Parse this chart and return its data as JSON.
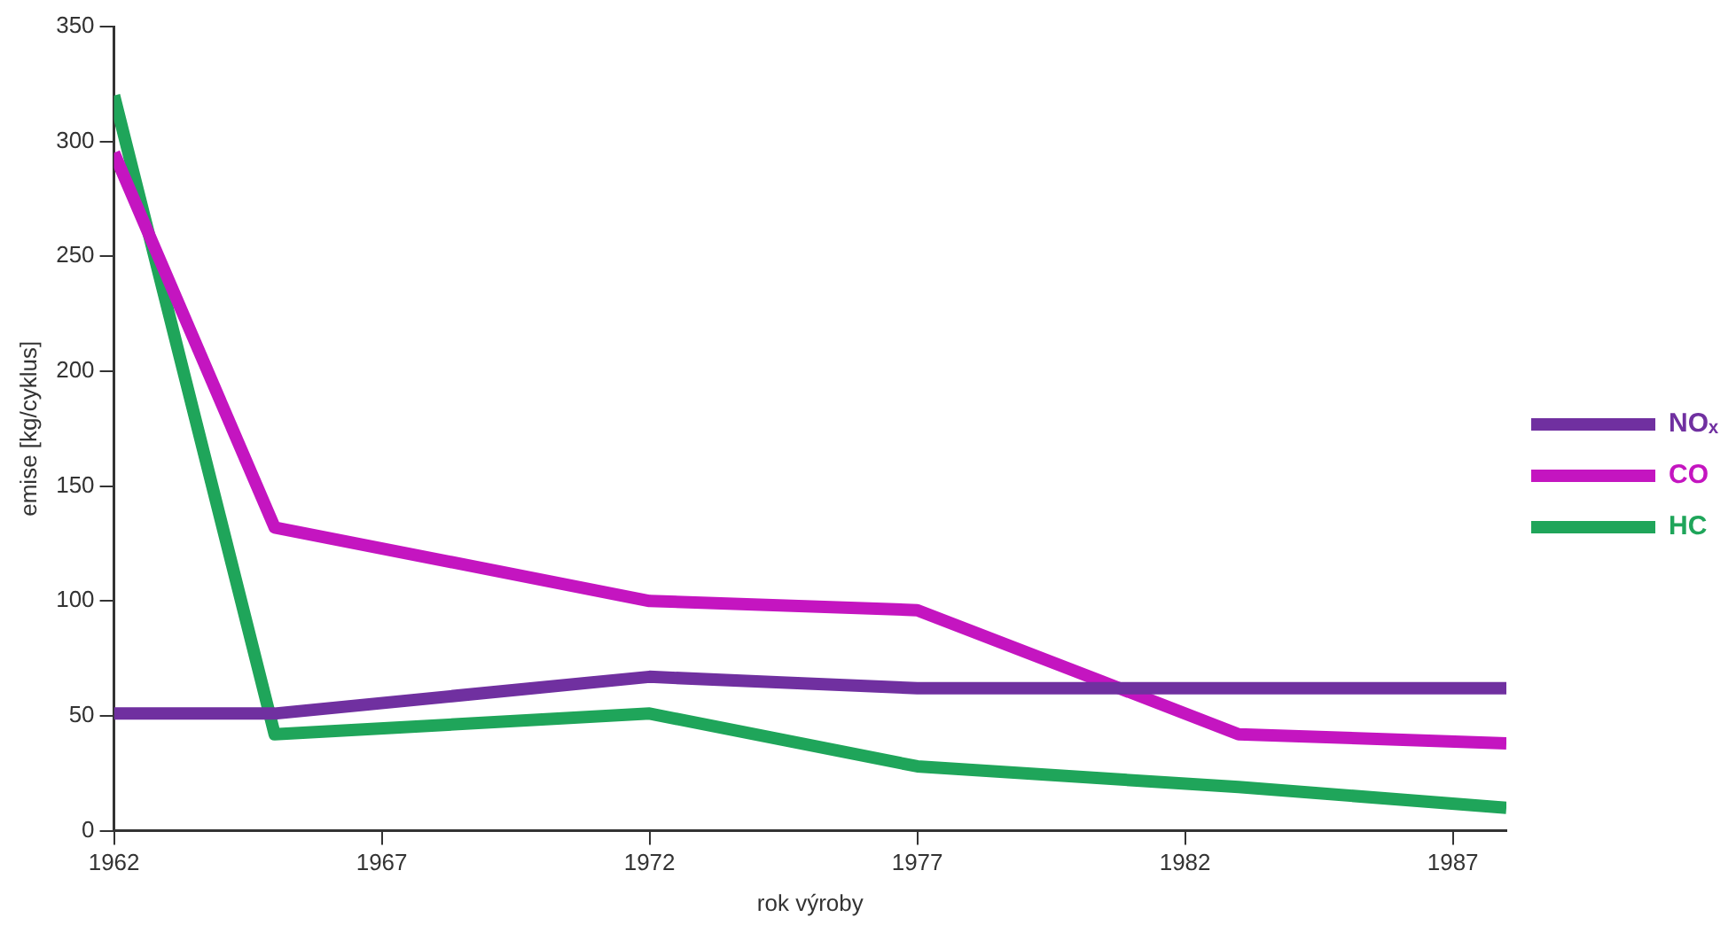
{
  "chart_data": {
    "type": "line",
    "xlabel": "rok výroby",
    "ylabel": "emise [kg/cyklus]",
    "xlim": [
      1962,
      1988
    ],
    "xticks": [
      1962,
      1967,
      1972,
      1977,
      1982,
      1987
    ],
    "ylim": [
      0,
      350
    ],
    "yticks": [
      0,
      50,
      100,
      150,
      200,
      250,
      300,
      350
    ],
    "grid": false,
    "legend": "right",
    "marker": "none",
    "line_style": "solid",
    "series": [
      {
        "name": "NOₓ",
        "color": "#7030a0",
        "x": [
          1962,
          1965,
          1972,
          1977,
          1988
        ],
        "values": [
          51,
          51,
          67,
          62,
          62
        ]
      },
      {
        "name": "CO",
        "color": "#c415c0",
        "x": [
          1962,
          1965,
          1972,
          1977,
          1983,
          1988
        ],
        "values": [
          295,
          132,
          100,
          96,
          42,
          38
        ]
      },
      {
        "name": "HC",
        "color": "#1fa55a",
        "x": [
          1962,
          1965,
          1972,
          1977,
          1983,
          1988
        ],
        "values": [
          320,
          42,
          51,
          28,
          19,
          10
        ]
      }
    ]
  }
}
